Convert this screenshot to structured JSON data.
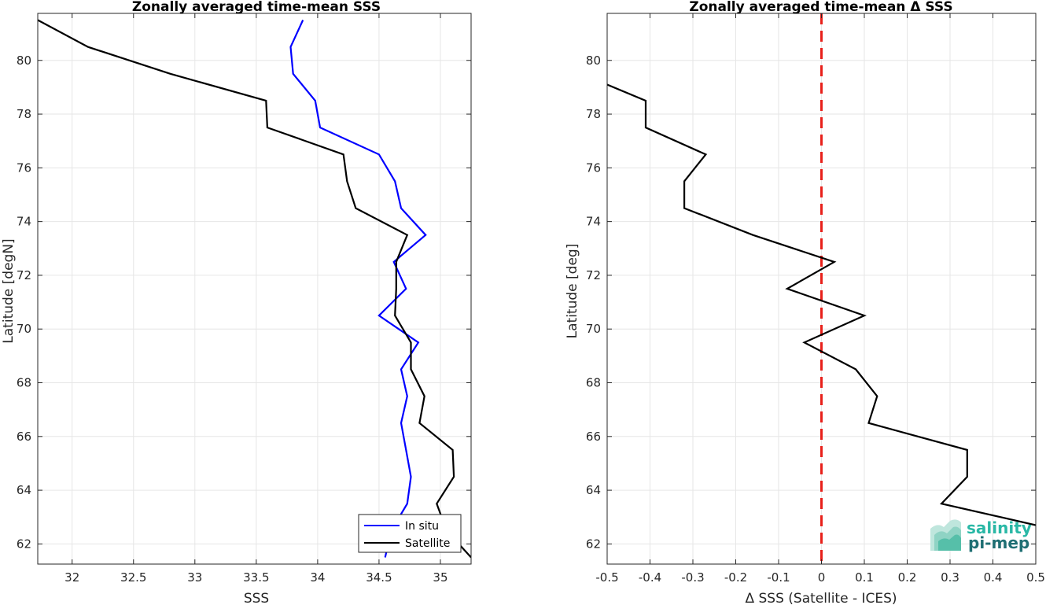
{
  "chart_data": [
    {
      "type": "line",
      "title": "Zonally averaged time-mean SSS",
      "xlabel": "SSS",
      "ylabel": "Latitude [degN]",
      "xlim": [
        31.72,
        35.25
      ],
      "ylim": [
        61.25,
        81.75
      ],
      "xticks": [
        32,
        32.5,
        33,
        33.5,
        34,
        34.5,
        35
      ],
      "xtick_labels": [
        "32",
        "32.5",
        "33",
        "33.5",
        "34",
        "34.5",
        "35"
      ],
      "yticks": [
        62,
        64,
        66,
        68,
        70,
        72,
        74,
        76,
        78,
        80
      ],
      "ytick_labels": [
        "62",
        "64",
        "66",
        "68",
        "70",
        "72",
        "74",
        "76",
        "78",
        "80"
      ],
      "grid": true,
      "legend": "bottom-right",
      "series": [
        {
          "name": "In situ",
          "color": "#0000ff",
          "points": [
            [
              33.88,
              81.5
            ],
            [
              33.78,
              80.5
            ],
            [
              33.8,
              79.5
            ],
            [
              33.98,
              78.5
            ],
            [
              34.02,
              77.5
            ],
            [
              34.5,
              76.5
            ],
            [
              34.63,
              75.5
            ],
            [
              34.68,
              74.5
            ],
            [
              34.88,
              73.5
            ],
            [
              34.62,
              72.5
            ],
            [
              34.72,
              71.5
            ],
            [
              34.5,
              70.5
            ],
            [
              34.82,
              69.5
            ],
            [
              34.68,
              68.5
            ],
            [
              34.73,
              67.5
            ],
            [
              34.68,
              66.5
            ],
            [
              34.72,
              65.5
            ],
            [
              34.76,
              64.5
            ],
            [
              34.73,
              63.5
            ],
            [
              34.6,
              62.5
            ],
            [
              34.55,
              61.5
            ]
          ]
        },
        {
          "name": "Satellite",
          "color": "#000000",
          "points": [
            [
              31.72,
              81.5
            ],
            [
              32.13,
              80.5
            ],
            [
              32.8,
              79.5
            ],
            [
              33.58,
              78.5
            ],
            [
              33.59,
              77.5
            ],
            [
              34.21,
              76.5
            ],
            [
              34.24,
              75.5
            ],
            [
              34.31,
              74.5
            ],
            [
              34.73,
              73.5
            ],
            [
              34.64,
              72.5
            ],
            [
              34.64,
              71.5
            ],
            [
              34.63,
              70.5
            ],
            [
              34.76,
              69.5
            ],
            [
              34.76,
              68.5
            ],
            [
              34.87,
              67.5
            ],
            [
              34.83,
              66.5
            ],
            [
              35.1,
              65.5
            ],
            [
              35.11,
              64.5
            ],
            [
              34.97,
              63.5
            ],
            [
              35.05,
              62.5
            ],
            [
              35.25,
              61.5
            ]
          ]
        }
      ]
    },
    {
      "type": "line",
      "title": "Zonally averaged time-mean Δ SSS",
      "xlabel": "Δ SSS (Satellite - ICES)",
      "ylabel": "Latitude [deg]",
      "xlim": [
        -0.5,
        0.5
      ],
      "ylim": [
        61.25,
        81.75
      ],
      "xticks": [
        -0.5,
        -0.4,
        -0.3,
        -0.2,
        -0.1,
        0,
        0.1,
        0.2,
        0.3,
        0.4,
        0.5
      ],
      "xtick_labels": [
        "-0.5",
        "-0.4",
        "-0.3",
        "-0.2",
        "-0.1",
        "0",
        "0.1",
        "0.2",
        "0.3",
        "0.4",
        "0.5"
      ],
      "yticks": [
        62,
        64,
        66,
        68,
        70,
        72,
        74,
        76,
        78,
        80
      ],
      "ytick_labels": [
        "62",
        "64",
        "66",
        "68",
        "70",
        "72",
        "74",
        "76",
        "78",
        "80"
      ],
      "grid": true,
      "reference_line": {
        "x": 0,
        "color": "#e8201a",
        "style": "dashed"
      },
      "series": [
        {
          "color": "#000000",
          "points": [
            [
              -0.5,
              79.1
            ],
            [
              -0.41,
              78.5
            ],
            [
              -0.41,
              77.5
            ],
            [
              -0.27,
              76.5
            ],
            [
              -0.32,
              75.5
            ],
            [
              -0.32,
              74.5
            ],
            [
              -0.16,
              73.5
            ],
            [
              0.03,
              72.5
            ],
            [
              -0.08,
              71.5
            ],
            [
              0.1,
              70.5
            ],
            [
              -0.04,
              69.5
            ],
            [
              0.08,
              68.5
            ],
            [
              0.13,
              67.5
            ],
            [
              0.11,
              66.5
            ],
            [
              0.34,
              65.5
            ],
            [
              0.34,
              64.5
            ],
            [
              0.28,
              63.5
            ],
            [
              0.5,
              62.7
            ]
          ]
        }
      ]
    }
  ],
  "logo": {
    "line1": "salinity",
    "line2": "pi-mep",
    "color1": "#2ab8a6",
    "color2": "#1f6f73"
  }
}
